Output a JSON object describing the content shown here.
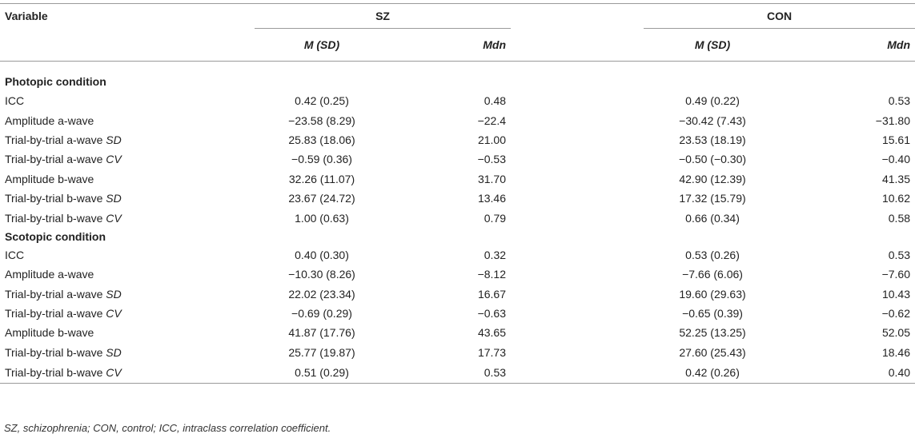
{
  "header": {
    "variable": "Variable",
    "group1": "SZ",
    "group2": "CON",
    "mean_sd": "M (SD)",
    "median": "Mdn"
  },
  "sections": [
    {
      "title": "Photopic condition",
      "rows": [
        {
          "label": "ICC",
          "label_italic": "",
          "sz_msd": "0.42 (0.25)",
          "sz_mdn": "0.48",
          "con_msd": "0.49 (0.22)",
          "con_mdn": "0.53"
        },
        {
          "label": "Amplitude a-wave",
          "label_italic": "",
          "sz_msd": "−23.58 (8.29)",
          "sz_mdn": "−22.4",
          "con_msd": "−30.42 (7.43)",
          "con_mdn": "−31.80"
        },
        {
          "label": "Trial-by-trial a-wave ",
          "label_italic": "SD",
          "sz_msd": "25.83 (18.06)",
          "sz_mdn": "21.00",
          "con_msd": "23.53 (18.19)",
          "con_mdn": "15.61"
        },
        {
          "label": "Trial-by-trial a-wave ",
          "label_italic": "CV",
          "sz_msd": "−0.59 (0.36)",
          "sz_mdn": "−0.53",
          "con_msd": "−0.50 (−0.30)",
          "con_mdn": "−0.40"
        },
        {
          "label": "Amplitude b-wave",
          "label_italic": "",
          "sz_msd": "32.26 (11.07)",
          "sz_mdn": "31.70",
          "con_msd": "42.90 (12.39)",
          "con_mdn": "41.35"
        },
        {
          "label": "Trial-by-trial b-wave ",
          "label_italic": "SD",
          "sz_msd": "23.67 (24.72)",
          "sz_mdn": "13.46",
          "con_msd": "17.32 (15.79)",
          "con_mdn": "10.62"
        },
        {
          "label": "Trial-by-trial b-wave ",
          "label_italic": "CV",
          "sz_msd": "1.00 (0.63)",
          "sz_mdn": "0.79",
          "con_msd": "0.66 (0.34)",
          "con_mdn": "0.58"
        }
      ]
    },
    {
      "title": "Scotopic condition",
      "rows": [
        {
          "label": "ICC",
          "label_italic": "",
          "sz_msd": "0.40 (0.30)",
          "sz_mdn": "0.32",
          "con_msd": "0.53 (0.26)",
          "con_mdn": "0.53"
        },
        {
          "label": "Amplitude a-wave",
          "label_italic": "",
          "sz_msd": "−10.30 (8.26)",
          "sz_mdn": "−8.12",
          "con_msd": "−7.66 (6.06)",
          "con_mdn": "−7.60"
        },
        {
          "label": "Trial-by-trial a-wave ",
          "label_italic": "SD",
          "sz_msd": "22.02 (23.34)",
          "sz_mdn": "16.67",
          "con_msd": "19.60 (29.63)",
          "con_mdn": "10.43"
        },
        {
          "label": "Trial-by-trial a-wave ",
          "label_italic": "CV",
          "sz_msd": "−0.69 (0.29)",
          "sz_mdn": "−0.63",
          "con_msd": "−0.65 (0.39)",
          "con_mdn": "−0.62"
        },
        {
          "label": "Amplitude b-wave",
          "label_italic": "",
          "sz_msd": "41.87 (17.76)",
          "sz_mdn": "43.65",
          "con_msd": "52.25 (13.25)",
          "con_mdn": "52.05"
        },
        {
          "label": "Trial-by-trial b-wave ",
          "label_italic": "SD",
          "sz_msd": "25.77 (19.87)",
          "sz_mdn": "17.73",
          "con_msd": "27.60 (25.43)",
          "con_mdn": "18.46"
        },
        {
          "label": "Trial-by-trial b-wave ",
          "label_italic": "CV",
          "sz_msd": "0.51 (0.29)",
          "sz_mdn": "0.53",
          "con_msd": "0.42 (0.26)",
          "con_mdn": "0.40"
        }
      ]
    }
  ],
  "footnote": "SZ, schizophrenia; CON, control; ICC, intraclass correlation coefficient."
}
